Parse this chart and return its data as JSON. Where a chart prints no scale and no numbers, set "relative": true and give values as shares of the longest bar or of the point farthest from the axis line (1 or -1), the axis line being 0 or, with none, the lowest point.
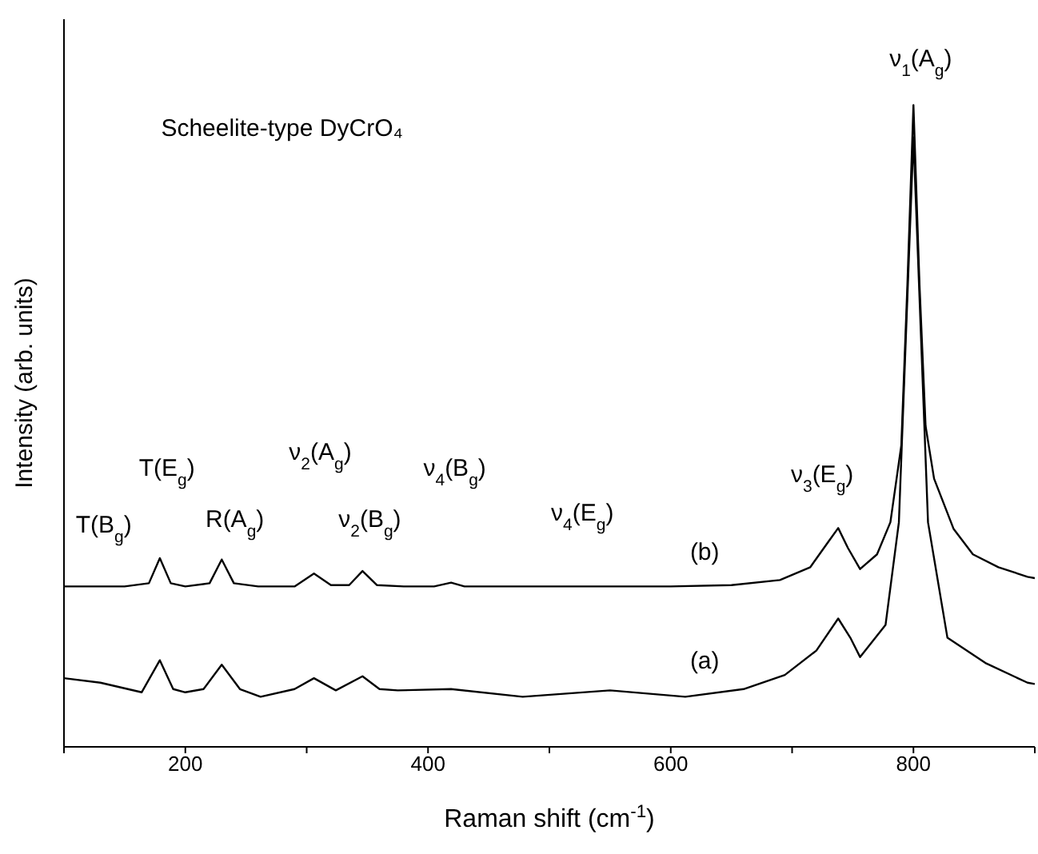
{
  "chart_data": {
    "type": "line",
    "relative": true,
    "xlabel": "Raman shift (cm$^{-1}$)",
    "ylabel": "Intensity (arb. units)",
    "xlim": [
      100,
      900
    ],
    "xticks": [
      {
        "value": 100,
        "label": null
      },
      200,
      {
        "value": 300,
        "label": null
      },
      400,
      {
        "value": 500,
        "label": null
      },
      600,
      {
        "value": 700,
        "label": null
      },
      800,
      {
        "value": 900,
        "label": null
      }
    ],
    "series": [
      {
        "name": "(b)",
        "color": "#000000",
        "x": [
          100,
          150,
          170,
          179,
          188,
          200,
          220,
          230,
          240,
          260,
          290,
          306,
          320,
          335,
          346,
          358,
          380,
          405,
          419,
          430,
          500,
          600,
          650,
          690,
          715,
          730,
          738,
          746,
          756,
          770,
          781,
          790,
          795,
          800,
          805,
          810,
          817,
          833,
          849,
          870,
          894,
          900
        ],
        "values": [
          0.25,
          0.25,
          0.255,
          0.294,
          0.255,
          0.25,
          0.255,
          0.292,
          0.255,
          0.25,
          0.25,
          0.27,
          0.252,
          0.252,
          0.274,
          0.252,
          0.25,
          0.25,
          0.256,
          0.25,
          0.25,
          0.25,
          0.252,
          0.26,
          0.28,
          0.32,
          0.341,
          0.31,
          0.277,
          0.3,
          0.35,
          0.47,
          0.72,
          1,
          0.72,
          0.5,
          0.418,
          0.34,
          0.3,
          0.28,
          0.265,
          0.263
        ]
      },
      {
        "name": "(a)",
        "color": "#000000",
        "x": [
          100,
          130,
          164,
          179,
          190,
          200,
          215,
          230,
          245,
          262,
          290,
          306,
          324,
          346,
          360,
          375,
          419,
          478,
          550,
          612,
          660,
          694,
          720,
          738,
          748,
          756,
          777,
          788,
          795,
          800,
          805,
          812,
          828,
          860,
          894,
          900
        ],
        "values": [
          0.107,
          0.1,
          0.085,
          0.135,
          0.09,
          0.085,
          0.09,
          0.128,
          0.09,
          0.078,
          0.09,
          0.107,
          0.088,
          0.11,
          0.09,
          0.088,
          0.09,
          0.078,
          0.088,
          0.078,
          0.09,
          0.112,
          0.15,
          0.2,
          0.17,
          0.14,
          0.19,
          0.35,
          0.7,
          0.95,
          0.7,
          0.35,
          0.17,
          0.13,
          0.1,
          0.098
        ]
      }
    ],
    "annotations": [
      "Scheelite-type DyCrO₄",
      "ν$_{1}$(A$_{g}$)",
      "T(B$_{g}$)",
      "T(E$_{g}$)",
      "R(A$_{g}$)",
      "ν$_{2}$(A$_{g}$)",
      "ν$_{2}$(B$_{g}$)",
      "ν$_{4}$(B$_{g}$)",
      "ν$_{4}$(E$_{g}$)",
      "ν$_{3}$(E$_{g}$)"
    ]
  }
}
